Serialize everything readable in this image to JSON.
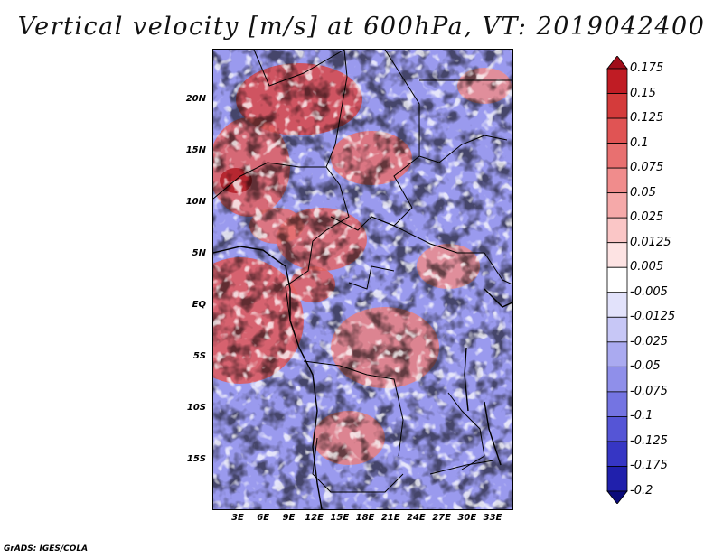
{
  "title": "Vertical velocity [m/s] at 600hPa, VT: 2019042400",
  "footer": "GrADS: IGES/COLA",
  "map": {
    "variable": "Vertical velocity",
    "units": "m/s",
    "level": "600hPa",
    "valid_time": "2019042400",
    "latitude_labels": [
      "20N",
      "15N",
      "10N",
      "5N",
      "EQ",
      "5S",
      "10S",
      "15S"
    ],
    "longitude_labels": [
      "3E",
      "6E",
      "9E",
      "12E",
      "15E",
      "18E",
      "21E",
      "24E",
      "27E",
      "30E",
      "33E"
    ]
  },
  "colorbar": {
    "levels": [
      "0.175",
      "0.15",
      "0.125",
      "0.1",
      "0.075",
      "0.05",
      "0.025",
      "0.0125",
      "0.005",
      "-0.005",
      "-0.0125",
      "-0.025",
      "-0.05",
      "-0.075",
      "-0.1",
      "-0.125",
      "-0.175",
      "-0.2"
    ],
    "colors": [
      "#a00d1a",
      "#c01c24",
      "#d43b3b",
      "#e05454",
      "#e87070",
      "#f08c8c",
      "#f5a9a9",
      "#fac6c6",
      "#fde3e3",
      "#ffffff",
      "#e2e2fb",
      "#c7c7f6",
      "#aaaaf0",
      "#8f8fea",
      "#7474e2",
      "#5555d6",
      "#3636c4",
      "#2020ac",
      "#0a0a7a"
    ]
  },
  "palette": {
    "red": "#d43b3b",
    "blue": "#5a5ae0",
    "white": "#ffffff",
    "boundary": "#000000"
  }
}
